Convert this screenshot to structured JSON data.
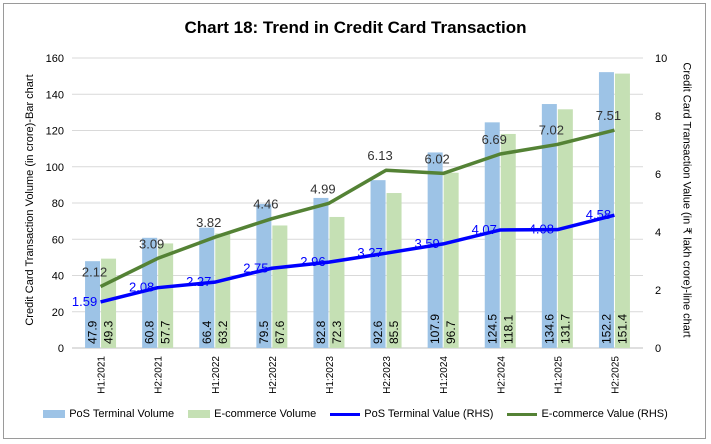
{
  "chart_data": {
    "type": "bar",
    "title": "Chart 18: Trend in Credit Card Transaction",
    "ylabel": "Credit Card Transaction Volume (in crore)-Bar chart",
    "y2label": "Credit Card Transaction Value (in ₹ lakh crore)-line chart",
    "ylim": [
      0,
      160
    ],
    "y2lim": [
      0,
      10
    ],
    "yticks": [
      0,
      20,
      40,
      60,
      80,
      100,
      120,
      140,
      160
    ],
    "y2ticks": [
      0,
      2,
      4,
      6,
      8,
      10
    ],
    "grid": true,
    "legend_position": "bottom",
    "categories": [
      "H1:2021",
      "H2:2021",
      "H1:2022",
      "H2:2022",
      "H1:2023",
      "H2:2023",
      "H1:2024",
      "H2:2024",
      "H1:2025",
      "H2:2025"
    ],
    "series": [
      {
        "name": "PoS Terminal Volume",
        "kind": "bar",
        "axis": "left",
        "color": "#9dc3e6",
        "label_color": "#000000",
        "values": [
          47.9,
          60.8,
          66.4,
          79.5,
          82.8,
          92.6,
          107.9,
          124.5,
          134.6,
          152.2
        ]
      },
      {
        "name": "E-commerce Volume",
        "kind": "bar",
        "axis": "left",
        "color": "#c5e0b4",
        "label_color": "#000000",
        "values": [
          49.3,
          57.7,
          63.2,
          67.6,
          72.3,
          85.5,
          96.7,
          118.1,
          131.7,
          151.4
        ]
      },
      {
        "name": "PoS Terminal  Value (RHS)",
        "kind": "line",
        "axis": "right",
        "color": "#0000ff",
        "label_color": "#0000ff",
        "values": [
          1.59,
          2.08,
          2.27,
          2.75,
          2.96,
          3.27,
          3.59,
          4.07,
          4.08,
          4.58
        ]
      },
      {
        "name": "E-commerce  Value (RHS)",
        "kind": "line",
        "axis": "right",
        "color": "#548235",
        "label_color": "#333333",
        "values": [
          2.12,
          3.09,
          3.82,
          4.46,
          4.99,
          6.13,
          6.02,
          6.69,
          7.02,
          7.51
        ]
      }
    ]
  }
}
